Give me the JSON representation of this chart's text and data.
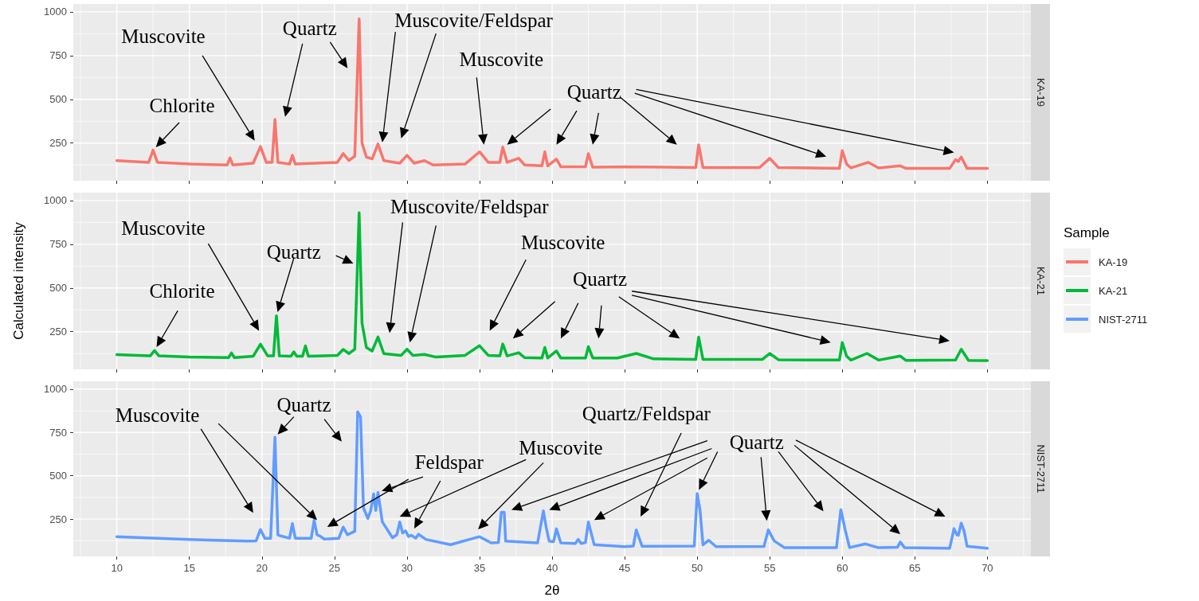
{
  "chart_data": [
    {
      "type": "line",
      "title": "KA-19",
      "xlim": [
        7,
        73
      ],
      "xticks": [
        10,
        15,
        20,
        25,
        30,
        35,
        40,
        45,
        50,
        55,
        60,
        65,
        70
      ],
      "ylim": [
        35,
        1045
      ],
      "yticks": [
        250,
        500,
        750,
        1000
      ],
      "grid": true,
      "tick_labels": "y",
      "x": [
        10,
        12.2,
        12.5,
        12.8,
        15,
        17.6,
        17.8,
        18.0,
        19.4,
        19.9,
        20.3,
        20.7,
        20.9,
        21.1,
        21.9,
        22.1,
        22.3,
        25.2,
        25.6,
        26.0,
        26.4,
        26.7,
        26.9,
        27.2,
        27.6,
        28.0,
        28.4,
        29.5,
        30.0,
        30.5,
        31.2,
        31.8,
        34.0,
        35.0,
        35.6,
        36.4,
        36.6,
        36.9,
        37.7,
        38.1,
        39.3,
        39.5,
        39.7,
        40.3,
        40.6,
        42.3,
        42.5,
        42.8,
        45.0,
        48,
        49.9,
        50.1,
        50.4,
        54.3,
        55.0,
        55.6,
        59.8,
        60.0,
        60.3,
        60.6,
        61.8,
        62.5,
        64.0,
        64.4,
        67.4,
        67.8,
        68.0,
        68.2,
        68.6,
        70
      ],
      "series": [
        {
          "name": "KA-19",
          "color": "#f8766d",
          "values": [
            150,
            140,
            210,
            140,
            130,
            125,
            165,
            125,
            135,
            230,
            140,
            140,
            385,
            140,
            130,
            180,
            130,
            140,
            190,
            150,
            175,
            960,
            250,
            170,
            160,
            245,
            150,
            135,
            180,
            135,
            150,
            125,
            130,
            200,
            140,
            140,
            227,
            140,
            163,
            125,
            120,
            200,
            120,
            158,
            115,
            115,
            190,
            112,
            115,
            112,
            110,
            240,
            110,
            110,
            163,
            110,
            105,
            207,
            130,
            108,
            140,
            108,
            120,
            105,
            105,
            155,
            145,
            170,
            105,
            105
          ]
        }
      ],
      "annotations": [
        "Muscovite",
        "Quartz",
        "Muscovite/Feldspar",
        "Muscovite",
        {
          "text": "Chlorite",
          "x": 12.5,
          "y": 210
        },
        "Quartz"
      ]
    },
    {
      "type": "line",
      "title": "KA-21",
      "ylabel": "Calculated intensity",
      "legend": "right",
      "legend_title": "Sample",
      "xlim": [
        7,
        73
      ],
      "xticks": [
        10,
        15,
        20,
        25,
        30,
        35,
        40,
        45,
        50,
        55,
        60,
        65,
        70
      ],
      "ylim": [
        35,
        1045
      ],
      "yticks": [
        250,
        500,
        750,
        1000
      ],
      "grid": true,
      "tick_labels": "y",
      "x": [
        10,
        12.3,
        12.6,
        12.9,
        15,
        17.7,
        17.9,
        18.1,
        19.4,
        19.9,
        20.4,
        20.8,
        21.0,
        21.2,
        22.0,
        22.2,
        22.4,
        22.8,
        23.0,
        23.2,
        25.2,
        25.6,
        26.0,
        26.4,
        26.7,
        26.9,
        27.2,
        27.6,
        28.0,
        28.4,
        29.6,
        30.0,
        30.4,
        31.2,
        32.0,
        34.0,
        35.0,
        35.6,
        36.4,
        36.6,
        36.9,
        37.7,
        38.1,
        39.3,
        39.5,
        39.7,
        40.3,
        40.6,
        42.3,
        42.5,
        42.8,
        44.5,
        45.8,
        47.0,
        49.9,
        50.1,
        50.4,
        54.5,
        55.0,
        55.6,
        59.8,
        60.0,
        60.3,
        60.6,
        61.7,
        62.5,
        64.0,
        64.4,
        67.8,
        68.2,
        68.7,
        70
      ],
      "series": [
        {
          "name": "KA-21",
          "color": "#00ba38",
          "values": [
            119,
            112,
            143,
            112,
            105,
            102,
            129,
            102,
            110,
            179,
            112,
            112,
            341,
            112,
            110,
            135,
            110,
            110,
            169,
            110,
            115,
            149,
            125,
            150,
            930,
            300,
            160,
            140,
            220,
            125,
            115,
            150,
            115,
            120,
            105,
            115,
            170,
            115,
            112,
            180,
            112,
            130,
            102,
            100,
            160,
            100,
            140,
            100,
            100,
            165,
            100,
            100,
            126,
            95,
            92,
            219,
            92,
            92,
            126,
            90,
            88,
            188,
            110,
            88,
            126,
            88,
            111,
            86,
            88,
            150,
            86,
            85
          ]
        }
      ],
      "annotations": [
        "Muscovite",
        {
          "text": "Chlorite",
          "x": 12.6,
          "y": 143
        },
        {
          "text": "Quartz",
          "x": 21.0,
          "y": 341
        },
        "Muscovite/Feldspar",
        "Muscovite",
        "Quartz"
      ]
    },
    {
      "type": "line",
      "title": "NIST-2711",
      "xlabel": "2θ",
      "xlim": [
        7,
        73
      ],
      "xticks": [
        10,
        15,
        20,
        25,
        30,
        35,
        40,
        45,
        50,
        55,
        60,
        65,
        70
      ],
      "ylim": [
        35,
        1045
      ],
      "yticks": [
        250,
        500,
        750,
        1000
      ],
      "grid": true,
      "x": [
        10,
        15,
        19.0,
        19.6,
        19.9,
        20.2,
        20.6,
        20.9,
        21.1,
        21.3,
        21.9,
        22.1,
        22.3,
        23.4,
        23.6,
        23.8,
        24.0,
        24.3,
        25.3,
        25.6,
        25.9,
        26.4,
        26.6,
        26.8,
        27.0,
        27.3,
        27.5,
        27.7,
        27.85,
        28.0,
        28.3,
        29.0,
        29.3,
        29.5,
        29.7,
        29.9,
        30.1,
        30.3,
        30.6,
        30.8,
        31.3,
        33.0,
        35.0,
        35.8,
        36.3,
        36.5,
        36.7,
        36.8,
        39.0,
        39.4,
        39.6,
        39.8,
        40.1,
        40.3,
        40.6,
        41.6,
        41.8,
        42.0,
        42.3,
        42.5,
        42.9,
        45.0,
        45.6,
        45.8,
        46.2,
        49.8,
        50.0,
        50.2,
        50.4,
        50.8,
        51.3,
        54.6,
        54.9,
        55.3,
        56.0,
        59.6,
        59.9,
        60.2,
        60.5,
        61.6,
        62.5,
        63.8,
        64.0,
        64.3,
        67.4,
        67.7,
        67.9,
        68.0,
        68.2,
        68.4,
        68.6,
        70
      ],
      "series": [
        {
          "name": "NIST-2711",
          "color": "#619cff",
          "values": [
            149,
            133,
            123,
            125,
            190,
            140,
            140,
            722,
            160,
            153,
            140,
            224,
            140,
            140,
            244,
            160,
            153,
            135,
            140,
            204,
            160,
            180,
            869,
            839,
            315,
            254,
            300,
            395,
            300,
            405,
            234,
            143,
            160,
            234,
            170,
            183,
            150,
            157,
            140,
            163,
            133,
            103,
            149,
            113,
            115,
            290,
            290,
            123,
            113,
            298,
            200,
            123,
            120,
            194,
            113,
            110,
            133,
            110,
            115,
            234,
            103,
            91,
            95,
            188,
            94,
            95,
            398,
            300,
            102,
            128,
            91,
            92,
            188,
            125,
            86,
            86,
            305,
            188,
            86,
            107,
            85,
            88,
            118,
            85,
            82,
            195,
            160,
            157,
            227,
            180,
            94,
            82
          ]
        }
      ],
      "annotations": [
        "Muscovite",
        {
          "text": "Quartz",
          "x": 20.9,
          "y": 722
        },
        {
          "text": "Feldspar",
          "x": 28.0,
          "y": 405
        },
        "Muscovite",
        "Quartz/Feldspar",
        {
          "text": "Quartz",
          "x": 50.0,
          "y": 398
        }
      ]
    }
  ]
}
